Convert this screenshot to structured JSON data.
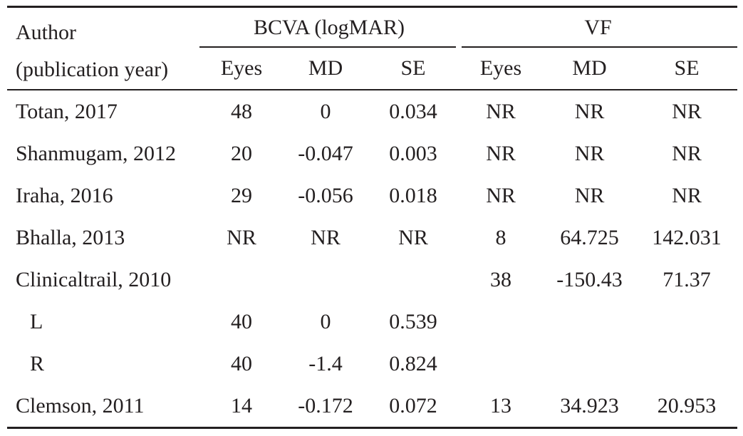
{
  "table": {
    "author_header": [
      "Author",
      "(publication year)"
    ],
    "groups": [
      {
        "label": "BCVA (logMAR)"
      },
      {
        "label": "VF"
      }
    ],
    "subheaders": [
      "Eyes",
      "MD",
      "SE",
      "Eyes",
      "MD",
      "SE"
    ],
    "rows": [
      {
        "author": "Totan, 2017",
        "cells": [
          "48",
          "0",
          "0.034",
          "NR",
          "NR",
          "NR"
        ]
      },
      {
        "author": "Shanmugam, 2012",
        "cells": [
          "20",
          "-0.047",
          "0.003",
          "NR",
          "NR",
          "NR"
        ]
      },
      {
        "author": "Iraha, 2016",
        "cells": [
          "29",
          "-0.056",
          "0.018",
          "NR",
          "NR",
          "NR"
        ]
      },
      {
        "author": "Bhalla, 2013",
        "cells": [
          "NR",
          "NR",
          "NR",
          "8",
          "64.725",
          "142.031"
        ]
      },
      {
        "author": "Clinicaltrail, 2010",
        "cells": [
          "",
          "",
          "",
          "38",
          "-150.43",
          "71.37"
        ]
      },
      {
        "author": "L",
        "cells": [
          "40",
          "0",
          "0.539",
          "",
          "",
          ""
        ]
      },
      {
        "author": "R",
        "cells": [
          "40",
          "-1.4",
          "0.824",
          "",
          "",
          ""
        ]
      },
      {
        "author": "Clemson, 2011",
        "cells": [
          "14",
          "-0.172",
          "0.072",
          "13",
          "34.923",
          "20.953"
        ]
      }
    ]
  }
}
